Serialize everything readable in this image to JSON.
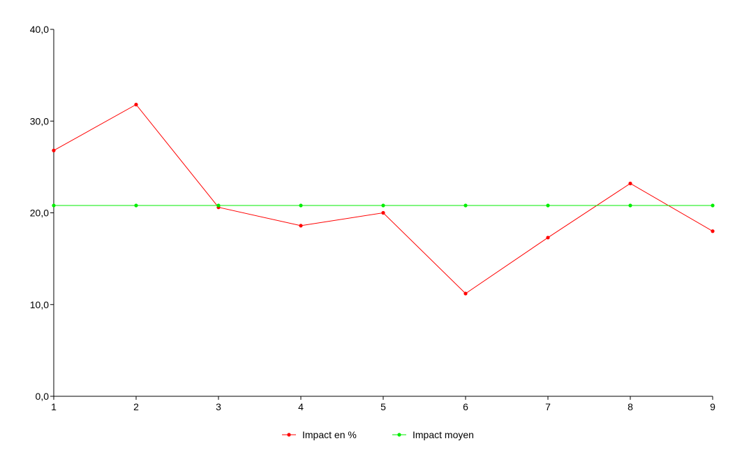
{
  "chart_data": {
    "type": "line",
    "title": "",
    "xlabel": "",
    "ylabel": "",
    "x": [
      1,
      2,
      3,
      4,
      5,
      6,
      7,
      8,
      9
    ],
    "x_tick_labels": [
      "1",
      "2",
      "3",
      "4",
      "5",
      "6",
      "7",
      "8",
      "9"
    ],
    "ylim": [
      0,
      40
    ],
    "y_ticks": [
      0,
      10,
      20,
      30,
      40
    ],
    "y_tick_labels": [
      "0,0",
      "10,0",
      "20,0",
      "30,0",
      "40,0"
    ],
    "grid": false,
    "legend_position": "bottom-center",
    "series": [
      {
        "name": "Impact en %",
        "color": "#ff0000",
        "values": [
          26.8,
          31.8,
          20.6,
          18.6,
          20.0,
          11.2,
          17.3,
          23.2,
          18.0
        ]
      },
      {
        "name": "Impact moyen",
        "color": "#00ee00",
        "values": [
          20.8,
          20.8,
          20.8,
          20.8,
          20.8,
          20.8,
          20.8,
          20.8,
          20.8
        ]
      }
    ]
  }
}
